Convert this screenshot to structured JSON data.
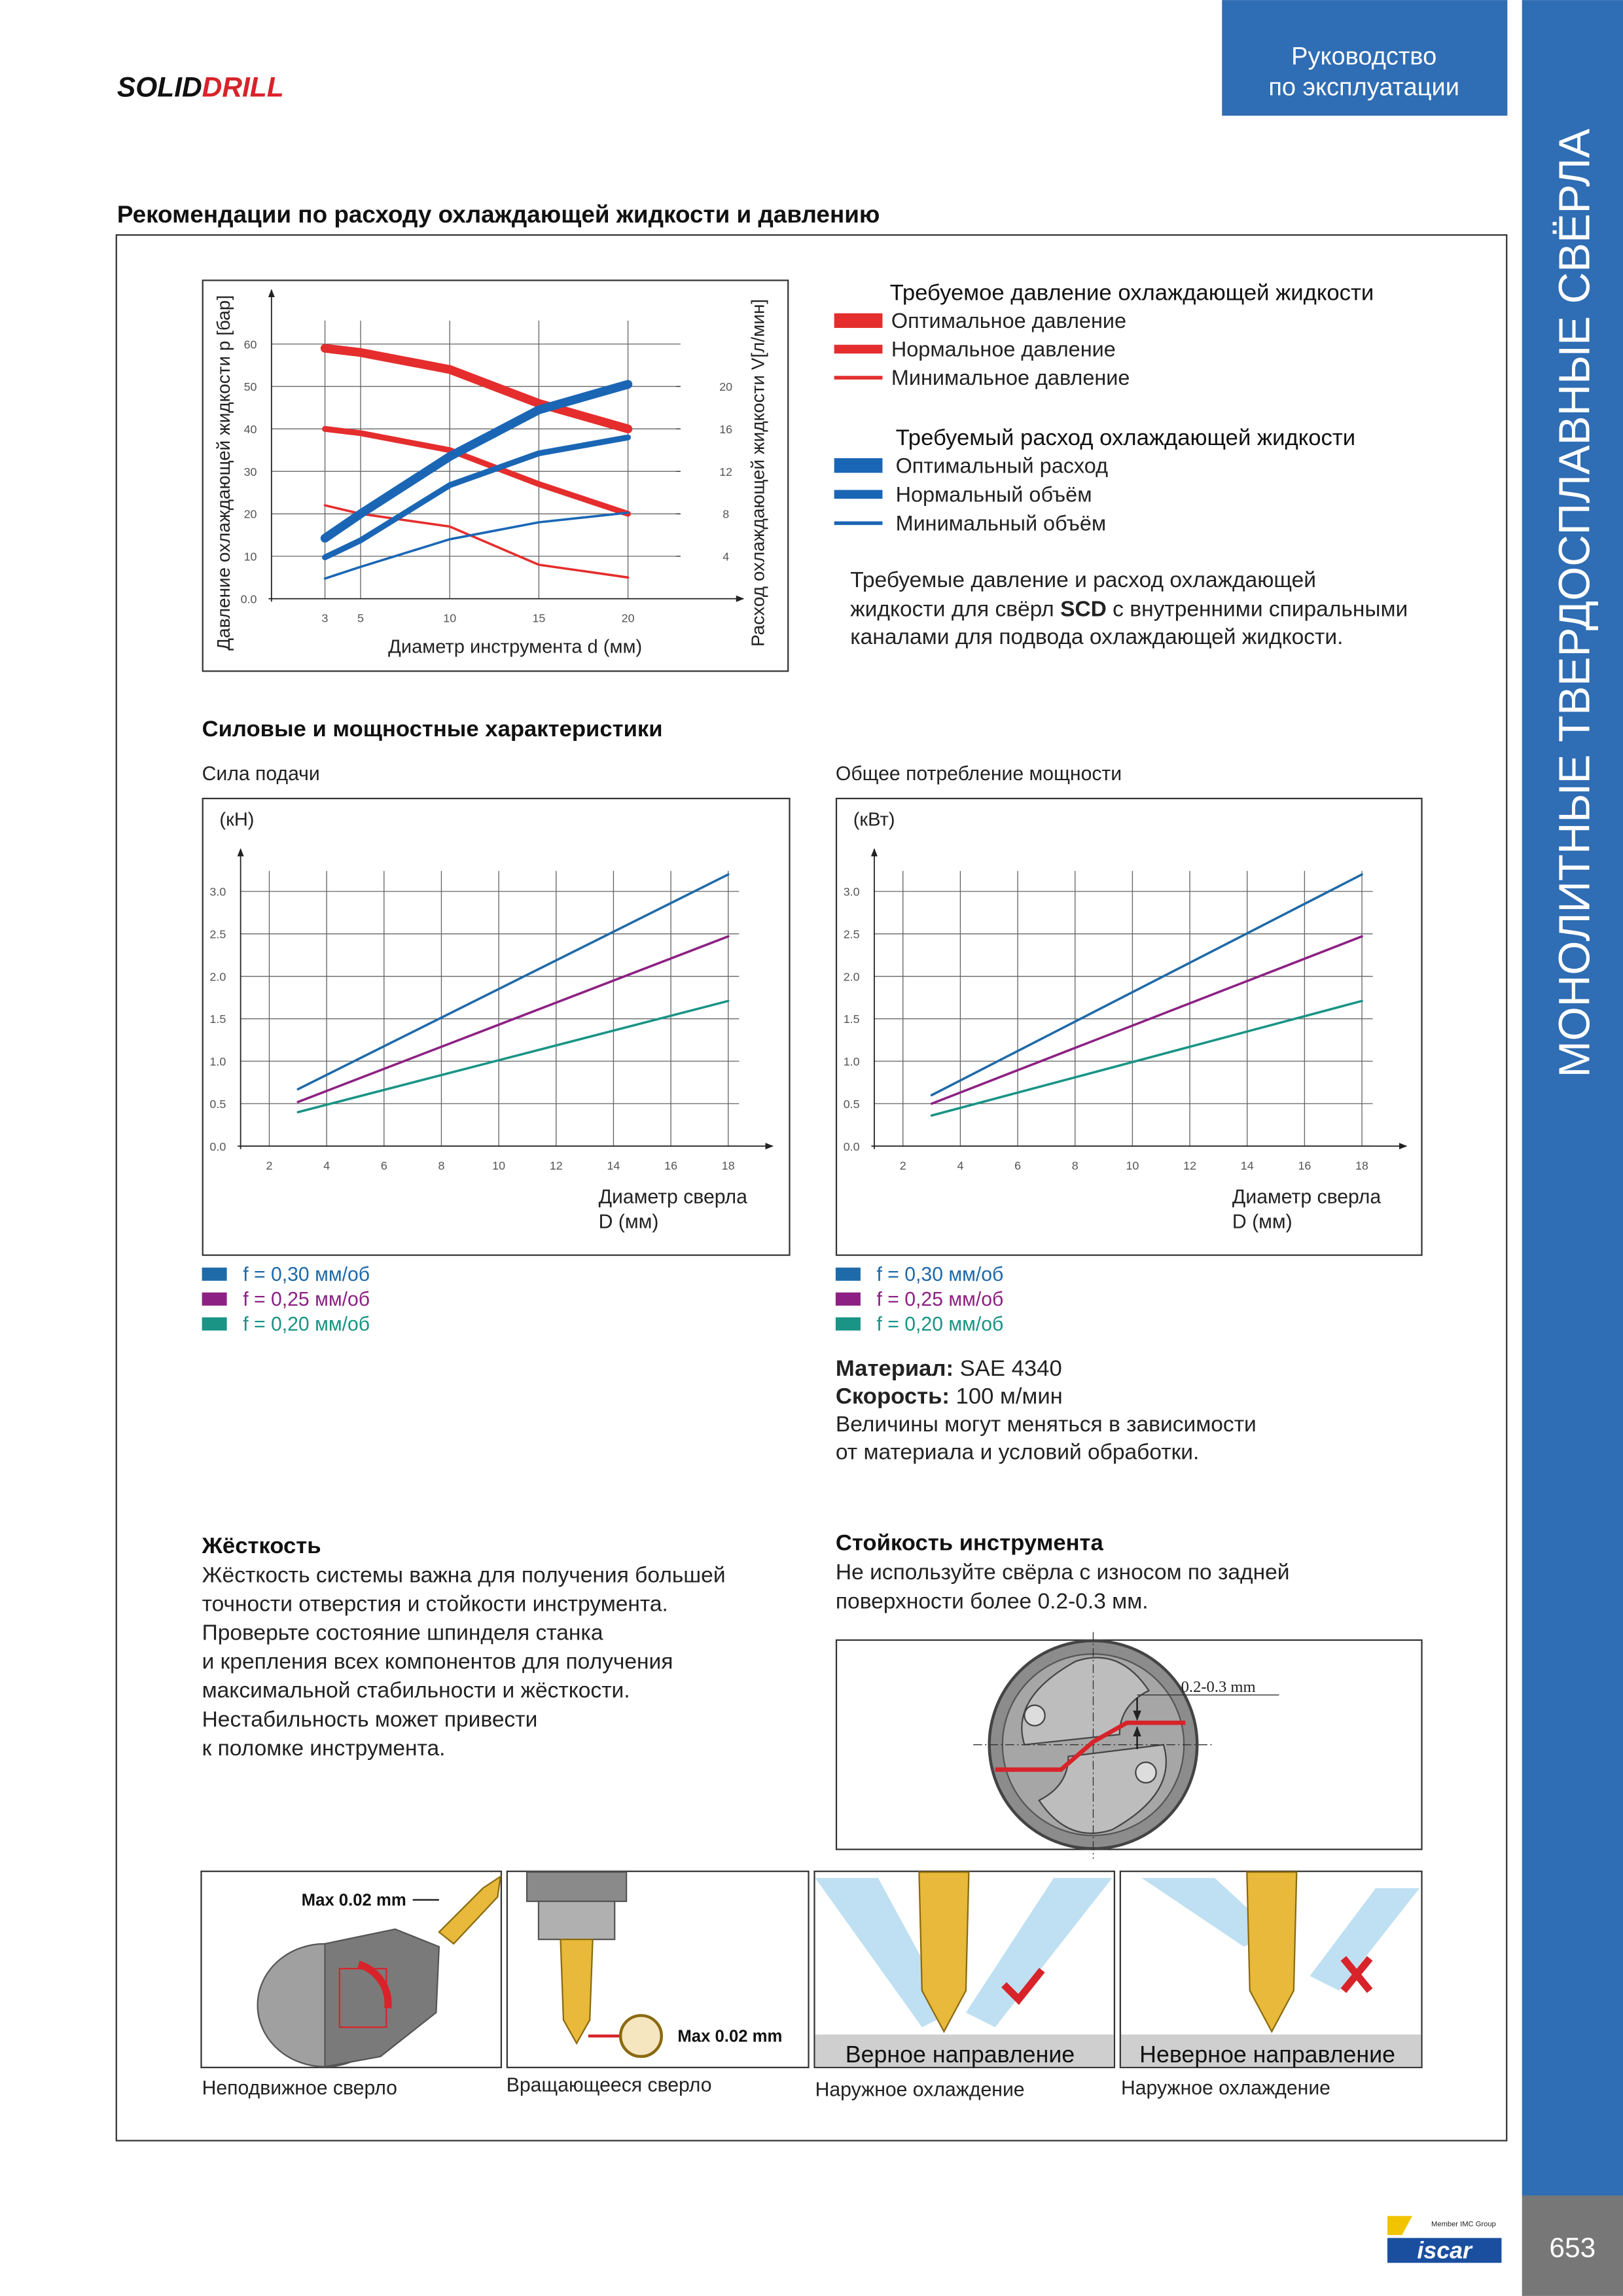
{
  "header": {
    "logo": [
      "SOLID",
      "DRILL"
    ],
    "tab": [
      "Руководство",
      "по эксплуатации"
    ],
    "side_title": "МОНОЛИТНЫЕ ТВЕРДОСПЛАВНЫЕ СВЁРЛА"
  },
  "section_title": "Рекомендации по расходу охлаждающей жидкости и давлению",
  "chart_data": [
    {
      "type": "line",
      "x_label": "Диаметр инструмента d (мм)",
      "y_label": "Давление охлаждающей жидкости p [бар]",
      "y2_label": "Расход охлаждающей жидкости V[л/мин]",
      "xlim": [
        0,
        25
      ],
      "xticks": [
        3,
        5,
        10,
        15,
        20
      ],
      "ylim": [
        0,
        65
      ],
      "yticks": [
        {
          "value": 0,
          "label": "0.0"
        },
        10,
        20,
        30,
        40,
        50,
        60
      ],
      "y2lim": [
        0,
        26
      ],
      "y2ticks": [
        4,
        8,
        12,
        16,
        20
      ],
      "grid": true,
      "legend_titles": [
        "Требуемое давление охлаждающей жидкости",
        "Требуемый расход охлаждающей жидкости"
      ],
      "series": [
        {
          "name": "Оптимальное давление",
          "color": "#e52d2d",
          "x": [
            3,
            5,
            10,
            15,
            20
          ],
          "values": [
            59,
            58,
            54,
            46,
            40
          ]
        },
        {
          "name": "Нормальное давление",
          "color": "#e52d2d",
          "x": [
            3,
            5,
            10,
            15,
            20
          ],
          "values": [
            40,
            39,
            35,
            27,
            20
          ]
        },
        {
          "name": "Минимальное давление",
          "color": "#e52d2d",
          "x": [
            3,
            5,
            10,
            15,
            20
          ],
          "values": [
            22,
            20,
            17,
            8,
            5
          ]
        },
        {
          "name": "Оптимальный расход",
          "color": "#1a66b5",
          "axis": "y2",
          "x": [
            3,
            5,
            10,
            15,
            20
          ],
          "values": [
            5.7,
            8,
            13.4,
            17.8,
            20.2
          ]
        },
        {
          "name": "Нормальный объём",
          "color": "#1a66b5",
          "axis": "y2",
          "x": [
            3,
            5,
            10,
            15,
            20
          ],
          "values": [
            3.9,
            5.5,
            10.7,
            13.7,
            15.2
          ]
        },
        {
          "name": "Минимальный объём",
          "color": "#1a66b5",
          "axis": "y2",
          "x": [
            3,
            5,
            10,
            15,
            20
          ],
          "values": [
            1.9,
            3,
            5.6,
            7.2,
            8.1
          ]
        }
      ]
    },
    {
      "type": "line",
      "title": "Сила подачи",
      "y_unit": "(кН)",
      "x_label": [
        "Диаметр сверла",
        "D (мм)"
      ],
      "xlim": [
        1,
        19.5
      ],
      "xticks": [
        2,
        4,
        6,
        8,
        10,
        12,
        14,
        16,
        18
      ],
      "ylim": [
        0,
        3.3
      ],
      "yticks": [
        {
          "value": 0,
          "label": "0.0"
        },
        0.5,
        {
          "value": 1,
          "label": "1.0"
        },
        1.5,
        {
          "value": 2,
          "label": "2.0"
        },
        2.5,
        {
          "value": 3,
          "label": "3.0"
        }
      ],
      "grid": true,
      "series": [
        {
          "name": "f = 0,30 мм/об",
          "color": "#1f6aa8",
          "x": [
            3,
            18
          ],
          "values": [
            0.67,
            3.2
          ]
        },
        {
          "name": "f = 0,25 мм/об",
          "color": "#8c2183",
          "x": [
            3,
            18
          ],
          "values": [
            0.52,
            2.47
          ]
        },
        {
          "name": "f = 0,20 мм/об",
          "color": "#199485",
          "x": [
            3,
            18
          ],
          "values": [
            0.4,
            1.71
          ]
        }
      ]
    },
    {
      "type": "line",
      "title": "Общее потребление мощности",
      "y_unit": "(кВт)",
      "x_label": [
        "Диаметр сверла",
        "D (мм)"
      ],
      "xlim": [
        1,
        19.5
      ],
      "xticks": [
        2,
        4,
        6,
        8,
        10,
        12,
        14,
        16,
        18
      ],
      "ylim": [
        0,
        3.3
      ],
      "yticks": [
        {
          "value": 0,
          "label": "0.0"
        },
        0.5,
        {
          "value": 1,
          "label": "1.0"
        },
        1.5,
        {
          "value": 2,
          "label": "2.0"
        },
        2.5,
        {
          "value": 3,
          "label": "3.0"
        }
      ],
      "grid": true,
      "series": [
        {
          "name": "f = 0,30 мм/об",
          "color": "#1f6aa8",
          "x": [
            3,
            18
          ],
          "values": [
            0.6,
            3.2
          ]
        },
        {
          "name": "f = 0,25 мм/об",
          "color": "#8c2183",
          "x": [
            3,
            18
          ],
          "values": [
            0.5,
            2.47
          ]
        },
        {
          "name": "f = 0,20 мм/об",
          "color": "#199485",
          "x": [
            3,
            18
          ],
          "values": [
            0.36,
            1.71
          ]
        }
      ]
    }
  ],
  "coolant_note": {
    "lines": [
      [
        "Требуемые давление и расход охлаждающей"
      ],
      [
        "жидкости для свёрл ",
        "SCD",
        " с внутренними спиральными"
      ],
      [
        "каналами для подвода охлаждающей жидкости."
      ]
    ]
  },
  "force_section_title": "Силовые и мощностные характеристики",
  "material": {
    "label": "Материал:",
    "value": " SAE 4340"
  },
  "speed": {
    "label": "Скорость:",
    "value": " 100 м/мин"
  },
  "note": [
    "Величины могут меняться в зависимости",
    "от материала и условий обработки."
  ],
  "rigidity": {
    "title": "Жёсткость",
    "lines": [
      "Жёсткость системы важна для получения большей",
      "точности отверстия и стойкости инструмента.",
      "Проверьте состояние шпинделя станка",
      "и крепления всех компонентов для получения",
      "максимальной стабильности и жёсткости.",
      "Нестабильность может привести",
      "к поломке инструмента."
    ]
  },
  "tool_life": {
    "title": "Стойкость инструмента",
    "lines": [
      "Не используйте свёрла с износом по задней",
      "поверхности более 0.2-0.3 мм."
    ],
    "wear_label": "0.2-0.3 mm"
  },
  "illustrations": [
    {
      "label": "Max 0.02 mm",
      "caption": "Неподвижное сверло"
    },
    {
      "label": "Max 0.02 mm",
      "caption": "Вращающееся сверло"
    },
    {
      "banner": "Верное направление",
      "caption": "Наружное охлаждение"
    },
    {
      "banner": "Неверное направление",
      "caption": "Наружное охлаждение"
    }
  ],
  "footer": {
    "member": "Member IMC Group",
    "brand": "iscar",
    "page": "653"
  }
}
